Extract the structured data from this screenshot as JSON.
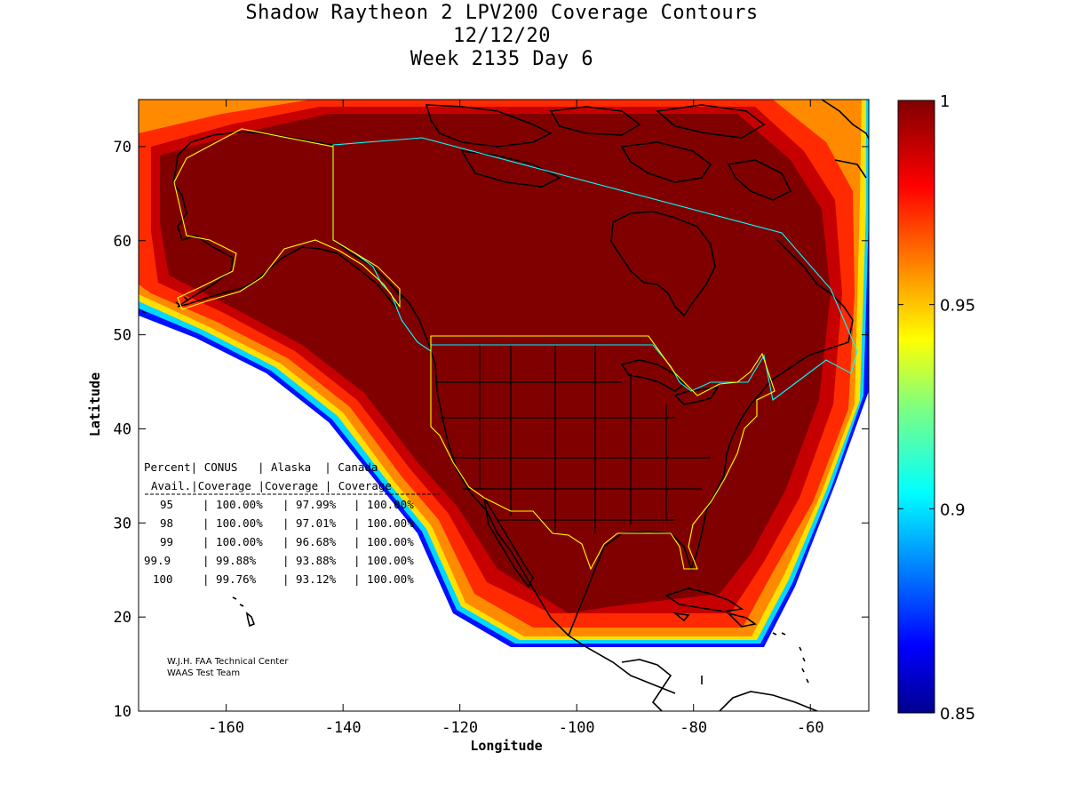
{
  "title": {
    "line1": "Shadow Raytheon 2 LPV200 Coverage Contours",
    "line2": "12/12/20",
    "line3": "Week 2135 Day 6"
  },
  "axes": {
    "xlabel": "Longitude",
    "ylabel": "Latitude",
    "x_ticks": [
      "-160",
      "-140",
      "-120",
      "-100",
      "-80",
      "-60"
    ],
    "y_ticks": [
      "70",
      "60",
      "50",
      "40",
      "30",
      "20",
      "10"
    ],
    "xlim": [
      -175,
      -50
    ],
    "ylim": [
      10,
      75
    ]
  },
  "colorbar": {
    "ticks": [
      "1",
      "0.95",
      "0.9",
      "0.85"
    ],
    "range": [
      0.85,
      1.0
    ],
    "colormap": "jet"
  },
  "colors": {
    "coverage_high": "#800000",
    "coverage_edge": "#ff2a00",
    "outline_conus": "#ffff00",
    "outline_canada": "#00ffff",
    "coastline": "#000000"
  },
  "stats_table": {
    "header1": [
      "Percent|",
      "CONUS",
      "| Alaska",
      "| Canada"
    ],
    "header2": [
      "Avail.|",
      "Coverage",
      "|Coverage",
      "| Coverage"
    ],
    "rows": [
      [
        "95",
        "| 100.00%",
        "| 97.99%",
        "| 100.00%"
      ],
      [
        "98",
        "| 100.00%",
        "| 97.01%",
        "| 100.00%"
      ],
      [
        "99",
        "| 100.00%",
        "| 96.68%",
        "| 100.00%"
      ],
      [
        "99.9",
        "| 99.88%",
        "| 93.88%",
        "| 100.00%"
      ],
      [
        "100",
        "| 99.76%",
        "| 93.12%",
        "| 100.00%"
      ]
    ]
  },
  "credit": {
    "line1": "W.J.H. FAA Technical Center",
    "line2": "WAAS Test Team"
  }
}
